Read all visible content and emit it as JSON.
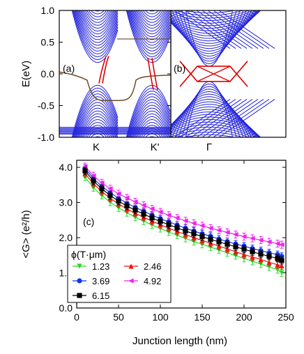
{
  "chart_data": [
    {
      "type": "line",
      "panel_label": "(a)",
      "ylabel": "E(eV)",
      "ylim": [
        -1.0,
        1.0
      ],
      "yticks": [
        "1.0",
        "0.5",
        "0.0",
        "-0.5",
        "-1.0"
      ],
      "xtick_labels": [
        "K",
        "K'"
      ],
      "colors": {
        "bulk": "#2222dd",
        "edge_brown": "#6b4a2a",
        "edge_red": "#e00000"
      }
    },
    {
      "type": "line",
      "panel_label": "(b)",
      "xtick_labels": [
        "Γ"
      ],
      "colors": {
        "bulk": "#2222dd",
        "edge_red": "#e00000"
      }
    },
    {
      "type": "line",
      "panel_label": "(c)",
      "xlabel": "Junction length (nm)",
      "ylabel": "<G> (e²/h)",
      "xlim": [
        0,
        250
      ],
      "ylim": [
        0.0,
        4.2
      ],
      "xticks": [
        0,
        50,
        100,
        150,
        200,
        250
      ],
      "yticks": [
        0.0,
        1.0,
        2.0,
        3.0,
        4.0
      ],
      "x": [
        10,
        20,
        30,
        40,
        50,
        60,
        70,
        80,
        90,
        100,
        110,
        120,
        130,
        140,
        150,
        160,
        170,
        180,
        190,
        200,
        210,
        220,
        230,
        240,
        245
      ],
      "legend_title": "ϕ(T·μm)",
      "series": [
        {
          "name": "1.23",
          "color": "#22dd22",
          "marker": "triangle-down",
          "values": [
            3.72,
            3.42,
            3.2,
            3.01,
            2.85,
            2.71,
            2.58,
            2.47,
            2.36,
            2.26,
            2.16,
            2.07,
            1.98,
            1.89,
            1.81,
            1.73,
            1.65,
            1.57,
            1.49,
            1.41,
            1.33,
            1.25,
            1.17,
            1.09,
            1.0
          ],
          "err": 0.1
        },
        {
          "name": "2.46",
          "color": "#ee1111",
          "marker": "triangle-up",
          "values": [
            3.82,
            3.53,
            3.31,
            3.12,
            2.96,
            2.82,
            2.69,
            2.58,
            2.47,
            2.37,
            2.27,
            2.18,
            2.09,
            2.0,
            1.92,
            1.84,
            1.76,
            1.68,
            1.6,
            1.52,
            1.45,
            1.38,
            1.3,
            1.23,
            1.2
          ],
          "err": 0.1
        },
        {
          "name": "3.69",
          "color": "#1133ee",
          "marker": "circle",
          "values": [
            3.97,
            3.68,
            3.46,
            3.28,
            3.12,
            2.98,
            2.86,
            2.75,
            2.64,
            2.54,
            2.45,
            2.36,
            2.27,
            2.19,
            2.11,
            2.04,
            1.96,
            1.89,
            1.82,
            1.76,
            1.69,
            1.63,
            1.57,
            1.52,
            1.47
          ],
          "err": 0.1
        },
        {
          "name": "4.92",
          "color": "#ee22ee",
          "marker": "triangle-left",
          "values": [
            4.02,
            3.76,
            3.56,
            3.39,
            3.25,
            3.13,
            3.02,
            2.92,
            2.82,
            2.73,
            2.64,
            2.56,
            2.48,
            2.41,
            2.34,
            2.27,
            2.21,
            2.15,
            2.09,
            2.03,
            1.98,
            1.93,
            1.88,
            1.83,
            1.8
          ],
          "err": 0.1
        },
        {
          "name": "6.15",
          "color": "#000000",
          "marker": "square",
          "values": [
            3.9,
            3.61,
            3.39,
            3.2,
            3.04,
            2.9,
            2.78,
            2.67,
            2.56,
            2.46,
            2.37,
            2.28,
            2.19,
            2.11,
            2.03,
            1.95,
            1.88,
            1.81,
            1.74,
            1.67,
            1.6,
            1.53,
            1.47,
            1.41,
            1.35
          ],
          "err": 0.1
        }
      ],
      "legend_placement": "bottom-left"
    }
  ]
}
